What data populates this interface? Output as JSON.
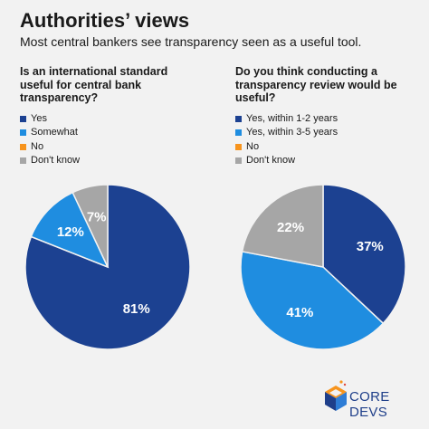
{
  "header": {
    "title": "Authorities’ views",
    "subtitle": "Most central bankers see transparency seen as a useful tool."
  },
  "colors": {
    "yes": "#1c4191",
    "somewhat": "#1f8de0",
    "no": "#f7941d",
    "dont_know": "#a6a6a6",
    "background": "#f2f2f2"
  },
  "chart_data": [
    {
      "type": "pie",
      "title": "Is an international standard useful for central bank transparency?",
      "categories": [
        "Yes",
        "Somewhat",
        "No",
        "Don't know"
      ],
      "values": [
        81,
        12,
        0,
        7
      ],
      "labels": [
        "81%",
        "12%",
        "",
        "7%"
      ],
      "colors": [
        "#1c4191",
        "#1f8de0",
        "#f7941d",
        "#a6a6a6"
      ],
      "legend": "top-left"
    },
    {
      "type": "pie",
      "title": "Do you think conducting a transparency review would be useful?",
      "categories": [
        "Yes, within 1-2 years",
        "Yes, within 3-5 years",
        "No",
        "Don't know"
      ],
      "values": [
        37,
        41,
        0,
        22
      ],
      "labels": [
        "37%",
        "41%",
        "",
        "22%"
      ],
      "colors": [
        "#1c4191",
        "#1f8de0",
        "#f7941d",
        "#a6a6a6"
      ],
      "legend": "top-left"
    }
  ],
  "logo": {
    "text": "CORE DEVS",
    "icon": "core-devs-cube-logo"
  }
}
